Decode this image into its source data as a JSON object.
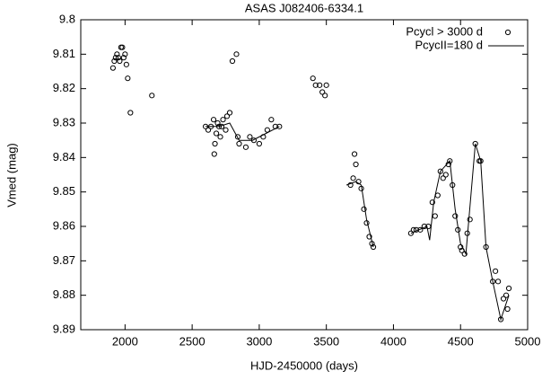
{
  "chart_data": {
    "type": "scatter",
    "title": "ASAS J082406-6334.1",
    "x_label": "HJD-2450000 (days)",
    "y_label": "Vmed (mag)",
    "xlim": [
      1670,
      5000
    ],
    "xticks": [
      2000,
      2500,
      3000,
      3500,
      4000,
      4500,
      5000
    ],
    "ylim": [
      9.89,
      9.8
    ],
    "yticks": [
      9.8,
      9.81,
      9.82,
      9.83,
      9.84,
      9.85,
      9.86,
      9.87,
      9.88,
      9.89
    ],
    "legend": "upper right",
    "series": [
      {
        "name": "Pcycl > 3000 d",
        "mode": "markers",
        "color": "#000000",
        "x": [
          1910,
          1920,
          1930,
          1940,
          1950,
          1960,
          1970,
          1980,
          1990,
          2000,
          2010,
          2020,
          2040,
          2200,
          2600,
          2620,
          2640,
          2660,
          2670,
          2665,
          2680,
          2690,
          2700,
          2710,
          2720,
          2730,
          2750,
          2760,
          2780,
          2800,
          2830,
          2840,
          2850,
          2900,
          2930,
          2960,
          3000,
          3030,
          3060,
          3090,
          3120,
          3150,
          3400,
          3420,
          3450,
          3470,
          3490,
          3500,
          3680,
          3700,
          3710,
          3720,
          3740,
          3760,
          3780,
          3800,
          3820,
          3840,
          3850,
          4130,
          4150,
          4170,
          4200,
          4230,
          4260,
          4290,
          4310,
          4330,
          4350,
          4370,
          4390,
          4410,
          4420,
          4440,
          4460,
          4480,
          4500,
          4510,
          4530,
          4550,
          4570,
          4610,
          4640,
          4650,
          4690,
          4740,
          4760,
          4780,
          4800,
          4820,
          4840,
          4850,
          4860
        ],
        "values": [
          9.814,
          9.812,
          9.811,
          9.81,
          9.811,
          9.812,
          9.808,
          9.808,
          9.811,
          9.81,
          9.813,
          9.817,
          9.827,
          9.822,
          9.831,
          9.832,
          9.831,
          9.829,
          9.836,
          9.839,
          9.833,
          9.83,
          9.831,
          9.834,
          9.831,
          9.829,
          9.832,
          9.828,
          9.827,
          9.812,
          9.81,
          9.834,
          9.836,
          9.837,
          9.834,
          9.835,
          9.836,
          9.834,
          9.832,
          9.829,
          9.831,
          9.831,
          9.817,
          9.819,
          9.819,
          9.821,
          9.822,
          9.819,
          9.848,
          9.846,
          9.839,
          9.842,
          9.847,
          9.849,
          9.855,
          9.859,
          9.863,
          9.865,
          9.866,
          9.862,
          9.861,
          9.861,
          9.861,
          9.86,
          9.86,
          9.853,
          9.857,
          9.851,
          9.844,
          9.846,
          9.845,
          9.842,
          9.841,
          9.848,
          9.857,
          9.861,
          9.866,
          9.867,
          9.868,
          9.862,
          9.858,
          9.836,
          9.841,
          9.841,
          9.866,
          9.876,
          9.873,
          9.876,
          9.887,
          9.881,
          9.88,
          9.884,
          9.878
        ]
      },
      {
        "name": "PcycII=180 d",
        "mode": "lines",
        "color": "#000000",
        "x": [
          2600,
          2700,
          2780,
          2850,
          2950,
          3050,
          3150,
          3400,
          3650,
          3720,
          3760,
          3800,
          3850,
          4000,
          4130,
          4250,
          4270,
          4300,
          4350,
          4420,
          4460,
          4500,
          4540,
          4610,
          4650,
          4690,
          4740,
          4800,
          4860
        ],
        "values": [
          9.831,
          9.831,
          9.83,
          9.835,
          9.835,
          9.833,
          9.831,
          null,
          9.848,
          9.847,
          9.848,
          9.858,
          9.866,
          null,
          9.862,
          9.86,
          9.864,
          9.853,
          9.844,
          9.841,
          9.855,
          9.865,
          9.868,
          9.836,
          9.841,
          9.866,
          9.876,
          9.887,
          9.88
        ]
      }
    ]
  }
}
